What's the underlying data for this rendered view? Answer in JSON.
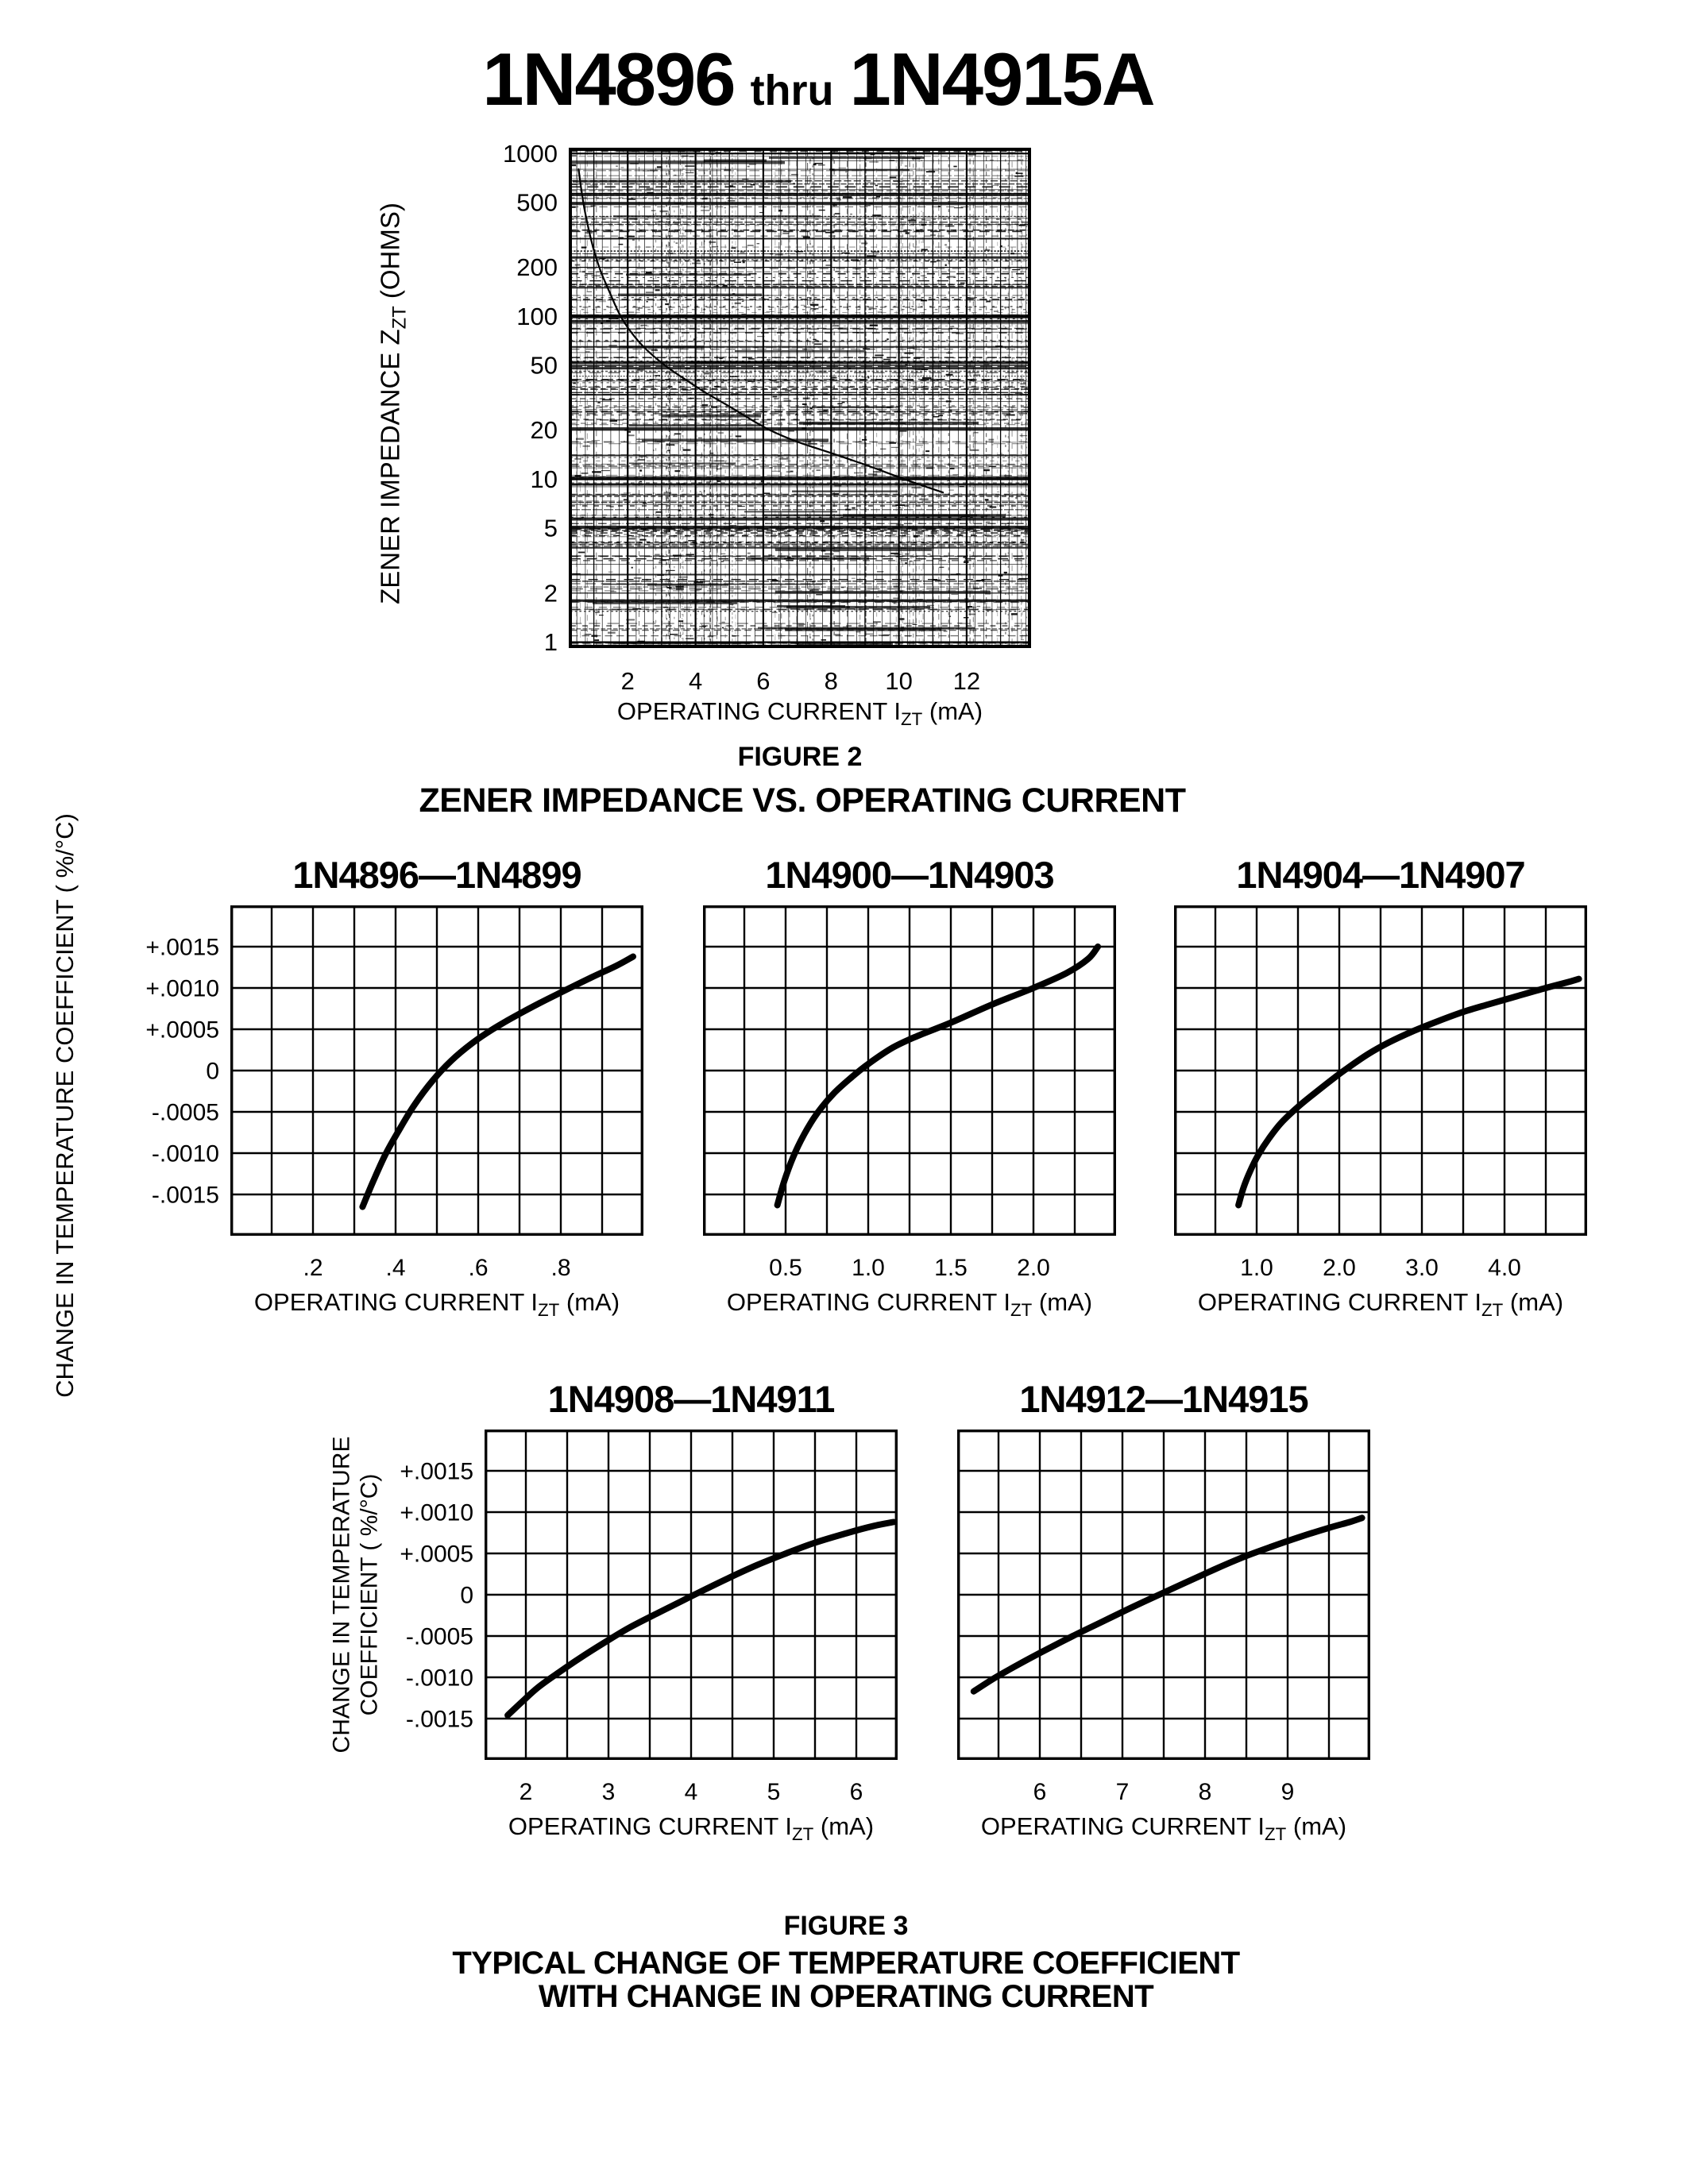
{
  "page_title": {
    "part_start": "1N4896",
    "connector": "thru",
    "part_end": "1N4915A"
  },
  "figure2": {
    "caption": "FIGURE 2",
    "title": "ZENER IMPEDANCE VS. OPERATING CURRENT"
  },
  "figure3": {
    "caption": "FIGURE 3",
    "title_line1": "TYPICAL CHANGE OF TEMPERATURE COEFFICIENT",
    "title_line2": "WITH CHANGE IN OPERATING CURRENT",
    "row1_y_label": "CHANGE IN TEMPERATURE COEFFICIENT ( %/°C)",
    "row2_y_label_line1": "CHANGE IN TEMPERATURE",
    "row2_y_label_line2": "COEFFICIENT ( %/°C)"
  },
  "chart_data": [
    {
      "id": "fig2",
      "type": "line",
      "title": "ZENER IMPEDANCE VS. OPERATING CURRENT",
      "figure_caption": "FIGURE 2",
      "x_scale": "linear",
      "y_scale": "log",
      "xlim": [
        0.26,
        13.9
      ],
      "ylim": [
        0.92,
        1085
      ],
      "x_ticks": [
        2,
        4,
        6,
        8,
        10,
        12
      ],
      "x_tick_labels": [
        "2",
        "4",
        "6",
        "8",
        "10",
        "12"
      ],
      "y_ticks": [
        1000,
        500,
        200,
        100,
        50,
        20,
        10,
        5,
        2,
        1
      ],
      "y_tick_labels": [
        "1000",
        "500",
        "200",
        "100",
        "50",
        "20",
        "10",
        "5",
        "2",
        "1"
      ],
      "show_y_tick_labels": true,
      "grid": "log-dense-scanned",
      "xlabel": {
        "text": "OPERATING CURRENT I",
        "sub": "ZT",
        "suffix": " (mA)"
      },
      "ylabel": {
        "text": "ZENER IMPEDANCE Z",
        "sub": "ZT",
        "suffix": " (OHMS)"
      },
      "series": [
        {
          "name": "zener-impedance",
          "points": [
            [
              0.55,
              800
            ],
            [
              0.62,
              620
            ],
            [
              0.72,
              460
            ],
            [
              0.85,
              340
            ],
            [
              1.0,
              255
            ],
            [
              1.2,
              190
            ],
            [
              1.45,
              143
            ],
            [
              1.76,
              103
            ],
            [
              2.1,
              80
            ],
            [
              2.5,
              64
            ],
            [
              3.1,
              50
            ],
            [
              3.7,
              41
            ],
            [
              4.3,
              34
            ],
            [
              5.0,
              28
            ],
            [
              5.6,
              23.5
            ],
            [
              6.2,
              20
            ],
            [
              7.0,
              17
            ],
            [
              8.0,
              14.5
            ],
            [
              9.0,
              12.3
            ],
            [
              10.0,
              10.3
            ],
            [
              10.8,
              9.0
            ],
            [
              11.3,
              8.3
            ]
          ]
        }
      ]
    },
    {
      "id": "tc1",
      "type": "line",
      "title": "1N4896—1N4899",
      "x_scale": "linear",
      "y_scale": "linear",
      "xlim": [
        0,
        1.0
      ],
      "ylim": [
        -0.002,
        0.002
      ],
      "x_minor_step": 0.1,
      "y_minor_step": 0.0005,
      "x_ticks": [
        0.2,
        0.4,
        0.6,
        0.8
      ],
      "x_tick_labels": [
        ".2",
        ".4",
        ".6",
        ".8"
      ],
      "y_ticks": [
        0.0015,
        0.001,
        0.0005,
        0,
        -0.0005,
        -0.001,
        -0.0015
      ],
      "y_tick_labels": [
        "+.0015",
        "+.0010",
        "+.0005",
        "0",
        "-.0005",
        "-.0010",
        "-.0015"
      ],
      "show_y_tick_labels": true,
      "grid": "on",
      "xlabel": {
        "text": "OPERATING CURRENT I",
        "sub": "ZT",
        "suffix": " (mA)"
      },
      "series": [
        {
          "name": "tc-shift",
          "points": [
            [
              0.32,
              -0.00165
            ],
            [
              0.345,
              -0.00135
            ],
            [
              0.375,
              -0.00102
            ],
            [
              0.405,
              -0.00075
            ],
            [
              0.445,
              -0.00042
            ],
            [
              0.49,
              -0.00012
            ],
            [
              0.535,
              0.00012
            ],
            [
              0.585,
              0.00033
            ],
            [
              0.635,
              0.0005
            ],
            [
              0.69,
              0.00066
            ],
            [
              0.75,
              0.00082
            ],
            [
              0.81,
              0.00097
            ],
            [
              0.875,
              0.00113
            ],
            [
              0.935,
              0.00127
            ],
            [
              0.975,
              0.00138
            ]
          ]
        }
      ]
    },
    {
      "id": "tc2",
      "type": "line",
      "title": "1N4900—1N4903",
      "x_scale": "linear",
      "y_scale": "linear",
      "xlim": [
        0,
        2.5
      ],
      "ylim": [
        -0.002,
        0.002
      ],
      "x_minor_step": 0.25,
      "y_minor_step": 0.0005,
      "x_ticks": [
        0.5,
        1.0,
        1.5,
        2.0
      ],
      "x_tick_labels": [
        "0.5",
        "1.0",
        "1.5",
        "2.0"
      ],
      "y_ticks": [
        0.0015,
        0.001,
        0.0005,
        0,
        -0.0005,
        -0.001,
        -0.0015
      ],
      "y_tick_labels": [
        "+.0015",
        "+.0010",
        "+.0005",
        "0",
        "-.0005",
        "-.0010",
        "-.0015"
      ],
      "show_y_tick_labels": false,
      "grid": "on",
      "xlabel": {
        "text": "OPERATING CURRENT I",
        "sub": "ZT",
        "suffix": " (mA)"
      },
      "series": [
        {
          "name": "tc-shift",
          "points": [
            [
              0.45,
              -0.00163
            ],
            [
              0.49,
              -0.00135
            ],
            [
              0.545,
              -0.00105
            ],
            [
              0.61,
              -0.00078
            ],
            [
              0.69,
              -0.00052
            ],
            [
              0.79,
              -0.00028
            ],
            [
              0.9,
              -8e-05
            ],
            [
              1.0,
              8e-05
            ],
            [
              1.15,
              0.00028
            ],
            [
              1.3,
              0.00042
            ],
            [
              1.5,
              0.00058
            ],
            [
              1.75,
              0.0008
            ],
            [
              2.0,
              0.001
            ],
            [
              2.2,
              0.00118
            ],
            [
              2.33,
              0.00135
            ],
            [
              2.39,
              0.0015
            ]
          ]
        }
      ]
    },
    {
      "id": "tc3",
      "type": "line",
      "title": "1N4904—1N4907",
      "x_scale": "linear",
      "y_scale": "linear",
      "xlim": [
        0,
        5.0
      ],
      "ylim": [
        -0.002,
        0.002
      ],
      "x_minor_step": 0.5,
      "y_minor_step": 0.0005,
      "x_ticks": [
        1.0,
        2.0,
        3.0,
        4.0
      ],
      "x_tick_labels": [
        "1.0",
        "2.0",
        "3.0",
        "4.0"
      ],
      "y_ticks": [
        0.0015,
        0.001,
        0.0005,
        0,
        -0.0005,
        -0.001,
        -0.0015
      ],
      "y_tick_labels": [
        "+.0015",
        "+.0010",
        "+.0005",
        "0",
        "-.0005",
        "-.0010",
        "-.0015"
      ],
      "show_y_tick_labels": false,
      "grid": "on",
      "xlabel": {
        "text": "OPERATING CURRENT I",
        "sub": "ZT",
        "suffix": " (mA)"
      },
      "series": [
        {
          "name": "tc-shift",
          "points": [
            [
              0.78,
              -0.00163
            ],
            [
              0.84,
              -0.00142
            ],
            [
              0.92,
              -0.00122
            ],
            [
              1.02,
              -0.00102
            ],
            [
              1.15,
              -0.00082
            ],
            [
              1.3,
              -0.00063
            ],
            [
              1.5,
              -0.00044
            ],
            [
              1.72,
              -0.00026
            ],
            [
              1.95,
              -8e-05
            ],
            [
              2.1,
              3e-05
            ],
            [
              2.35,
              0.0002
            ],
            [
              2.6,
              0.00034
            ],
            [
              2.9,
              0.00048
            ],
            [
              3.2,
              0.0006
            ],
            [
              3.5,
              0.00071
            ],
            [
              3.8,
              0.0008
            ],
            [
              4.15,
              0.0009
            ],
            [
              4.5,
              0.001
            ],
            [
              4.8,
              0.00108
            ],
            [
              4.9,
              0.00111
            ]
          ]
        }
      ]
    },
    {
      "id": "tc4",
      "type": "line",
      "title": "1N4908—1N4911",
      "x_scale": "linear",
      "y_scale": "linear",
      "xlim": [
        1.5,
        6.5
      ],
      "ylim": [
        -0.002,
        0.002
      ],
      "x_minor_step": 0.5,
      "y_minor_step": 0.0005,
      "x_ticks": [
        2,
        3,
        4,
        5,
        6
      ],
      "x_tick_labels": [
        "2",
        "3",
        "4",
        "5",
        "6"
      ],
      "y_ticks": [
        0.0015,
        0.001,
        0.0005,
        0,
        -0.0005,
        -0.001,
        -0.0015
      ],
      "y_tick_labels": [
        "+.0015",
        "+.0010",
        "+.0005",
        "0",
        "-.0005",
        "-.0010",
        "-.0015"
      ],
      "show_y_tick_labels": true,
      "grid": "on",
      "xlabel": {
        "text": "OPERATING CURRENT I",
        "sub": "ZT",
        "suffix": " (mA)"
      },
      "series": [
        {
          "name": "tc-shift",
          "points": [
            [
              1.78,
              -0.00146
            ],
            [
              1.95,
              -0.0013
            ],
            [
              2.15,
              -0.00112
            ],
            [
              2.4,
              -0.00094
            ],
            [
              2.65,
              -0.00077
            ],
            [
              2.95,
              -0.00058
            ],
            [
              3.25,
              -0.0004
            ],
            [
              3.6,
              -0.00022
            ],
            [
              3.9,
              -7e-05
            ],
            [
              4.1,
              3e-05
            ],
            [
              4.45,
              0.0002
            ],
            [
              4.8,
              0.00036
            ],
            [
              5.15,
              0.0005
            ],
            [
              5.5,
              0.00063
            ],
            [
              5.9,
              0.00075
            ],
            [
              6.2,
              0.00083
            ],
            [
              6.45,
              0.00088
            ]
          ]
        }
      ]
    },
    {
      "id": "tc5",
      "type": "line",
      "title": "1N4912—1N4915",
      "x_scale": "linear",
      "y_scale": "linear",
      "xlim": [
        5.0,
        10.0
      ],
      "ylim": [
        -0.002,
        0.002
      ],
      "x_minor_step": 0.5,
      "y_minor_step": 0.0005,
      "x_ticks": [
        6,
        7,
        8,
        9
      ],
      "x_tick_labels": [
        "6",
        "7",
        "8",
        "9"
      ],
      "y_ticks": [
        0.0015,
        0.001,
        0.0005,
        0,
        -0.0005,
        -0.001,
        -0.0015
      ],
      "y_tick_labels": [
        "+.0015",
        "+.0010",
        "+.0005",
        "0",
        "-.0005",
        "-.0010",
        "-.0015"
      ],
      "show_y_tick_labels": false,
      "grid": "on",
      "xlabel": {
        "text": "OPERATING CURRENT I",
        "sub": "ZT",
        "suffix": " (mA)"
      },
      "series": [
        {
          "name": "tc-shift",
          "points": [
            [
              5.2,
              -0.00117
            ],
            [
              5.45,
              -0.00101
            ],
            [
              5.75,
              -0.00084
            ],
            [
              6.05,
              -0.00068
            ],
            [
              6.4,
              -0.0005
            ],
            [
              6.75,
              -0.00033
            ],
            [
              7.1,
              -0.00016
            ],
            [
              7.4,
              -2e-05
            ],
            [
              7.75,
              0.00014
            ],
            [
              8.1,
              0.0003
            ],
            [
              8.45,
              0.00045
            ],
            [
              8.8,
              0.00058
            ],
            [
              9.15,
              0.0007
            ],
            [
              9.5,
              0.00081
            ],
            [
              9.75,
              0.00088
            ],
            [
              9.9,
              0.00093
            ]
          ]
        }
      ]
    }
  ]
}
